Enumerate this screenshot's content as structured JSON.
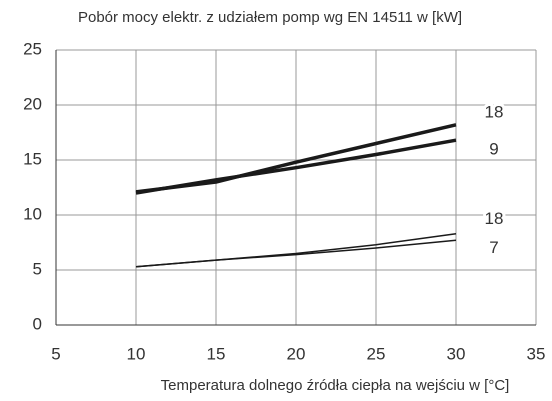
{
  "chart_data": {
    "type": "line",
    "title": "Pobór mocy elektr. z udziałem pomp wg EN 14511 w [kW]",
    "x_label": "Temperatura dolnego źródła ciepła na wejściu w [°C]",
    "x": [
      10,
      15,
      20,
      25,
      30
    ],
    "series": [
      {
        "name": "18",
        "color": "#1a1a1a",
        "linewidth": 3.5,
        "values": [
          12.1,
          13.0,
          14.8,
          16.5,
          18.2
        ]
      },
      {
        "name": "9",
        "color": "#1a1a1a",
        "linewidth": 3.5,
        "values": [
          12.0,
          13.2,
          14.3,
          15.5,
          16.8
        ]
      },
      {
        "name": "18",
        "color": "#1a1a1a",
        "linewidth": 1.5,
        "values": [
          5.3,
          5.9,
          6.5,
          7.3,
          8.3
        ]
      },
      {
        "name": "7",
        "color": "#1a1a1a",
        "linewidth": 1.5,
        "values": [
          5.3,
          5.9,
          6.4,
          7.0,
          7.7
        ]
      }
    ],
    "xlim": [
      5,
      35
    ],
    "xticks": [
      5,
      10,
      15,
      20,
      25,
      30,
      35
    ],
    "ylim": [
      0,
      25
    ],
    "yticks": [
      0,
      5,
      10,
      15,
      20,
      25
    ],
    "grid": true
  }
}
